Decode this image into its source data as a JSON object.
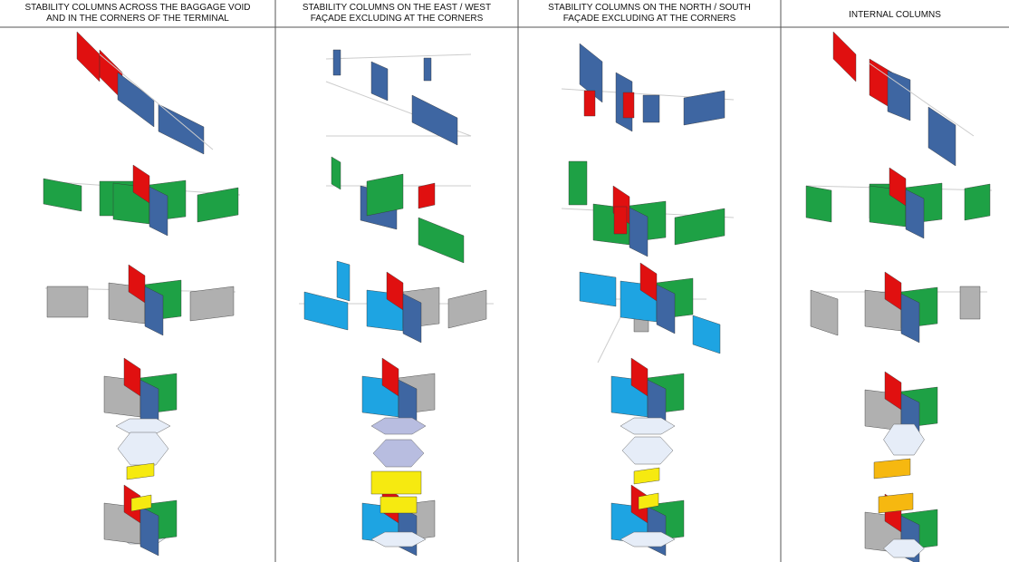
{
  "columns": [
    {
      "title_lines": [
        "STABILITY COLUMNS ACROSS THE BAGGAGE VOID",
        "AND IN THE CORNERS OF THE TERMINAL"
      ]
    },
    {
      "title_lines": [
        "STABILITY COLUMNS ON THE EAST / WEST",
        "FAÇADE EXCLUDING AT THE CORNERS"
      ]
    },
    {
      "title_lines": [
        "STABILITY COLUMNS ON THE NORTH / SOUTH",
        "FAÇADE EXCLUDING AT THE CORNERS"
      ]
    },
    {
      "title_lines": [
        "INTERNAL COLUMNS"
      ]
    }
  ]
}
